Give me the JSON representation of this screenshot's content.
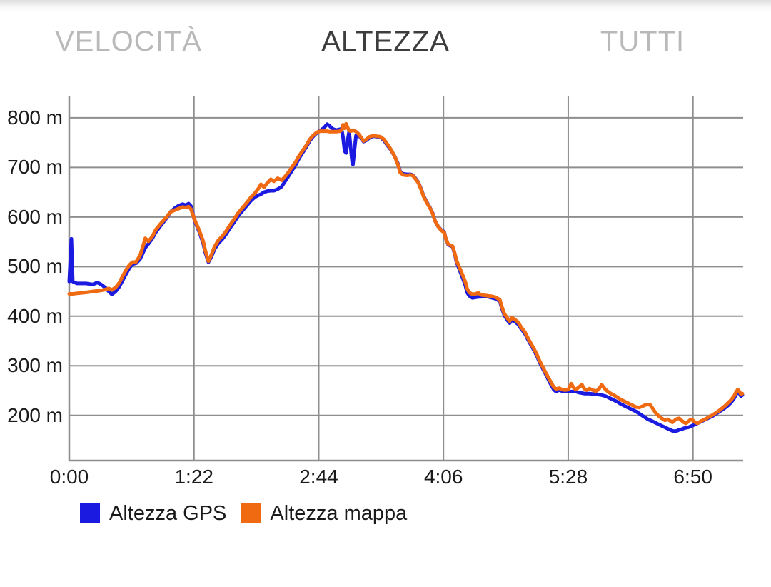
{
  "tabs": [
    {
      "label": "VELOCITÀ",
      "active": false
    },
    {
      "label": "ALTEZZA",
      "active": true
    },
    {
      "label": "TUTTI",
      "active": false
    }
  ],
  "theme": {
    "tab_active_color": "#3d3d3d",
    "tab_inactive_color": "#b9b9b9",
    "grid_color": "#8e8e8e",
    "axis_color": "#8e8e8e",
    "text_color": "#1a1a1a",
    "background": "#ffffff",
    "gps_blue": "#1b1ae1",
    "map_orange": "#f06a12"
  },
  "chart_data": {
    "type": "line",
    "title": "",
    "xlabel": "",
    "ylabel": "",
    "x_unit": "elapsed time h:mm",
    "y_unit": "m",
    "x_range": [
      0,
      443
    ],
    "y_range": [
      109,
      843
    ],
    "grid": true,
    "legend_position": "bottom-left",
    "x_ticks": [
      {
        "t": 0,
        "label": "0:00"
      },
      {
        "t": 82,
        "label": "1:22"
      },
      {
        "t": 164,
        "label": "2:44"
      },
      {
        "t": 246,
        "label": "4:06"
      },
      {
        "t": 328,
        "label": "5:28"
      },
      {
        "t": 410,
        "label": "6:50"
      }
    ],
    "y_ticks": [
      {
        "v": 800,
        "label": "800 m"
      },
      {
        "v": 700,
        "label": "700 m"
      },
      {
        "v": 600,
        "label": "600 m"
      },
      {
        "v": 500,
        "label": "500 m"
      },
      {
        "v": 400,
        "label": "400 m"
      },
      {
        "v": 300,
        "label": "300 m"
      },
      {
        "v": 200,
        "label": "200 m"
      }
    ],
    "series": [
      {
        "name": "Altezza GPS",
        "color": "#1b1ae1",
        "col": 1
      },
      {
        "name": "Altezza mappa",
        "color": "#f06a12",
        "col": 2
      }
    ],
    "points": [
      [
        0,
        470,
        445
      ],
      [
        1.4,
        556,
        445
      ],
      [
        2.3,
        470,
        445
      ],
      [
        5,
        466,
        446
      ],
      [
        11,
        466,
        448
      ],
      [
        15.5,
        464,
        450
      ],
      [
        18.5,
        468,
        451
      ],
      [
        21,
        464,
        452
      ],
      [
        24,
        457,
        454
      ],
      [
        26,
        450,
        456
      ],
      [
        28,
        444,
        453
      ],
      [
        30.5,
        450,
        458
      ],
      [
        33,
        460,
        468
      ],
      [
        35,
        472,
        480
      ],
      [
        37.5,
        486,
        494
      ],
      [
        39.5,
        497,
        503
      ],
      [
        41.5,
        505,
        509
      ],
      [
        44,
        507,
        510
      ],
      [
        46.5,
        515,
        522
      ],
      [
        48.5,
        528,
        541
      ],
      [
        50,
        538,
        557
      ],
      [
        52,
        546,
        551
      ],
      [
        54.5,
        556,
        560
      ],
      [
        57,
        570,
        575
      ],
      [
        60.5,
        584,
        588
      ],
      [
        64,
        598,
        600
      ],
      [
        66.5,
        610,
        610
      ],
      [
        69.5,
        618,
        614
      ],
      [
        72,
        623,
        617
      ],
      [
        74.5,
        626,
        620
      ],
      [
        76.5,
        624,
        619
      ],
      [
        78.5,
        627,
        621
      ],
      [
        80,
        622,
        616
      ],
      [
        82.5,
        592,
        594
      ],
      [
        85.5,
        570,
        573
      ],
      [
        88,
        548,
        552
      ],
      [
        89.5,
        528,
        532
      ],
      [
        91.5,
        509,
        511
      ],
      [
        93.5,
        520,
        524
      ],
      [
        95.5,
        535,
        540
      ],
      [
        98,
        547,
        553
      ],
      [
        100.5,
        555,
        561
      ],
      [
        103,
        565,
        571
      ],
      [
        105.5,
        577,
        583
      ],
      [
        108.5,
        590,
        596
      ],
      [
        111,
        602,
        608
      ],
      [
        114,
        613,
        619
      ],
      [
        117,
        624,
        630
      ],
      [
        119.5,
        633,
        640
      ],
      [
        122,
        640,
        648
      ],
      [
        124.5,
        644,
        658
      ],
      [
        126,
        646,
        666
      ],
      [
        128,
        650,
        660
      ],
      [
        130,
        652,
        668
      ],
      [
        132.5,
        653,
        676
      ],
      [
        134.5,
        653,
        672
      ],
      [
        137,
        656,
        678
      ],
      [
        139.5,
        661,
        674
      ],
      [
        141.5,
        670,
        680
      ],
      [
        144,
        682,
        690
      ],
      [
        146.5,
        694,
        701
      ],
      [
        149,
        706,
        712
      ],
      [
        151,
        718,
        723
      ],
      [
        153.5,
        730,
        734
      ],
      [
        156,
        742,
        745
      ],
      [
        158,
        753,
        756
      ],
      [
        160.5,
        763,
        765
      ],
      [
        163,
        770,
        771
      ],
      [
        165,
        774,
        773
      ],
      [
        167.5,
        780,
        773
      ],
      [
        169.5,
        787,
        773
      ],
      [
        171,
        784,
        772
      ],
      [
        173,
        778,
        772
      ],
      [
        175.5,
        775,
        772
      ],
      [
        178,
        777,
        773
      ],
      [
        179,
        778,
        775
      ],
      [
        180,
        760,
        786
      ],
      [
        181,
        733,
        779
      ],
      [
        182,
        729,
        788
      ],
      [
        183,
        755,
        780
      ],
      [
        184,
        772,
        774
      ],
      [
        185,
        740,
        773
      ],
      [
        186,
        710,
        774
      ],
      [
        186.5,
        706,
        775
      ],
      [
        187.5,
        735,
        774
      ],
      [
        188.5,
        764,
        772
      ],
      [
        190,
        766,
        768
      ],
      [
        192,
        758,
        760
      ],
      [
        193.5,
        752,
        753
      ],
      [
        195.5,
        755,
        757
      ],
      [
        197.5,
        760,
        762
      ],
      [
        200,
        763,
        764
      ],
      [
        202,
        762,
        763
      ],
      [
        204.5,
        761,
        762
      ],
      [
        207,
        754,
        756
      ],
      [
        209,
        745,
        747
      ],
      [
        211.5,
        735,
        736
      ],
      [
        214,
        722,
        722
      ],
      [
        216,
        708,
        706
      ],
      [
        217.5,
        692,
        690
      ],
      [
        219.5,
        687,
        685
      ],
      [
        222,
        686,
        684
      ],
      [
        224.5,
        686,
        685
      ],
      [
        226,
        684,
        683
      ],
      [
        227.5,
        678,
        677
      ],
      [
        229.5,
        670,
        669
      ],
      [
        231.5,
        655,
        654
      ],
      [
        233,
        642,
        641
      ],
      [
        235,
        630,
        629
      ],
      [
        237,
        620,
        619
      ],
      [
        239,
        607,
        606
      ],
      [
        240.5,
        592,
        592
      ],
      [
        242.5,
        581,
        581
      ],
      [
        244.5,
        574,
        573
      ],
      [
        246.5,
        570,
        569
      ],
      [
        247.5,
        557,
        557
      ],
      [
        249,
        545,
        546
      ],
      [
        250.5,
        542,
        543
      ],
      [
        252,
        540,
        541
      ],
      [
        253.5,
        524,
        526
      ],
      [
        254.5,
        510,
        513
      ],
      [
        256,
        498,
        502
      ],
      [
        257.5,
        486,
        491
      ],
      [
        259,
        474,
        480
      ],
      [
        260.5,
        461,
        468
      ],
      [
        261.5,
        448,
        456
      ],
      [
        263,
        441,
        448
      ],
      [
        265,
        437,
        444
      ],
      [
        267,
        438,
        445
      ],
      [
        269,
        439,
        447
      ],
      [
        270.5,
        439,
        443
      ],
      [
        273,
        440,
        442
      ],
      [
        275.5,
        439,
        441
      ],
      [
        278,
        437,
        440
      ],
      [
        280.5,
        435,
        438
      ],
      [
        283,
        430,
        433
      ],
      [
        284.5,
        415,
        418
      ],
      [
        286,
        402,
        405
      ],
      [
        288,
        392,
        396
      ],
      [
        289.5,
        386,
        390
      ],
      [
        291,
        393,
        397
      ],
      [
        293,
        389,
        393
      ],
      [
        295,
        384,
        388
      ],
      [
        297,
        375,
        378
      ],
      [
        299.5,
        365,
        368
      ],
      [
        301.5,
        353,
        356
      ],
      [
        303.5,
        342,
        345
      ],
      [
        305.5,
        331,
        334
      ],
      [
        307.5,
        319,
        322
      ],
      [
        309,
        308,
        311
      ],
      [
        311,
        296,
        299
      ],
      [
        313,
        284,
        287
      ],
      [
        315,
        272,
        276
      ],
      [
        317,
        260,
        265
      ],
      [
        318.5,
        252,
        257
      ],
      [
        320,
        248,
        253
      ],
      [
        322,
        251,
        255
      ],
      [
        324,
        249,
        252
      ],
      [
        326,
        248,
        251
      ],
      [
        328,
        248,
        252
      ],
      [
        330,
        248,
        264
      ],
      [
        331.5,
        248,
        256
      ],
      [
        333,
        248,
        252
      ],
      [
        335,
        246,
        257
      ],
      [
        337,
        245,
        262
      ],
      [
        338.5,
        244,
        254
      ],
      [
        340,
        244,
        251
      ],
      [
        342,
        244,
        254
      ],
      [
        344,
        243,
        251
      ],
      [
        346,
        243,
        249
      ],
      [
        348,
        242,
        252
      ],
      [
        350,
        241,
        262
      ],
      [
        351,
        240,
        258
      ],
      [
        352.5,
        239,
        252
      ],
      [
        354.5,
        236,
        247
      ],
      [
        356.5,
        233,
        243
      ],
      [
        358.5,
        230,
        240
      ],
      [
        360.5,
        227,
        236
      ],
      [
        362.5,
        223,
        232
      ],
      [
        364.5,
        220,
        229
      ],
      [
        366.5,
        217,
        226
      ],
      [
        368.5,
        214,
        223
      ],
      [
        370.5,
        211,
        220
      ],
      [
        372.5,
        208,
        217
      ],
      [
        374.5,
        204,
        216
      ],
      [
        376.5,
        200,
        218
      ],
      [
        378.5,
        196,
        221
      ],
      [
        380.5,
        192,
        222
      ],
      [
        382,
        190,
        221
      ],
      [
        383.5,
        188,
        214
      ],
      [
        385.5,
        185,
        205
      ],
      [
        387.5,
        182,
        199
      ],
      [
        389.5,
        179,
        194
      ],
      [
        391.5,
        176,
        190
      ],
      [
        393.5,
        173,
        192
      ],
      [
        395,
        171,
        189
      ],
      [
        396.5,
        169,
        186
      ],
      [
        398,
        168,
        190
      ],
      [
        399.5,
        169,
        193
      ],
      [
        401,
        171,
        194
      ],
      [
        402.5,
        172,
        190
      ],
      [
        404,
        174,
        186
      ],
      [
        405.5,
        175,
        184
      ],
      [
        407,
        176,
        188
      ],
      [
        408.5,
        178,
        192
      ],
      [
        410,
        180,
        190
      ],
      [
        411.5,
        182,
        186
      ],
      [
        413,
        184,
        184
      ],
      [
        415,
        187,
        188
      ],
      [
        417,
        190,
        191
      ],
      [
        419,
        193,
        194
      ],
      [
        421,
        196,
        198
      ],
      [
        423,
        199,
        201
      ],
      [
        425,
        203,
        205
      ],
      [
        427,
        207,
        209
      ],
      [
        429,
        211,
        214
      ],
      [
        431,
        215,
        219
      ],
      [
        433,
        220,
        225
      ],
      [
        435,
        226,
        231
      ],
      [
        437,
        234,
        239
      ],
      [
        438.5,
        243,
        248
      ],
      [
        439.5,
        248,
        252
      ],
      [
        440.5,
        245,
        248
      ],
      [
        441.5,
        239,
        243
      ],
      [
        442.5,
        241,
        244
      ]
    ]
  }
}
